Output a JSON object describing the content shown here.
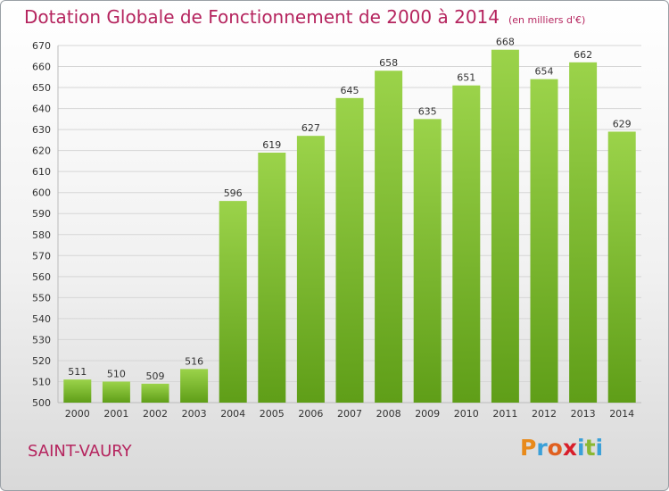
{
  "header": {
    "title": "Dotation Globale de Fonctionnement de 2000 à 2014",
    "subtitle": "(en milliers d'€)"
  },
  "commune": "SAINT-VAURY",
  "logo": {
    "text": "Proxiti",
    "letter_colors": [
      "#e88a1a",
      "#3aa0d8",
      "#e06020",
      "#d81e2a",
      "#3aa0d8",
      "#8ab832",
      "#3aa0d8"
    ]
  },
  "chart_data": {
    "type": "bar",
    "title": "Dotation Globale de Fonctionnement de 2000 à 2014",
    "subtitle": "(en milliers d'€)",
    "xlabel": "",
    "ylabel": "",
    "categories": [
      "2000",
      "2001",
      "2002",
      "2003",
      "2004",
      "2005",
      "2006",
      "2007",
      "2008",
      "2009",
      "2010",
      "2011",
      "2012",
      "2013",
      "2014"
    ],
    "values": [
      511,
      510,
      509,
      516,
      596,
      619,
      627,
      645,
      658,
      635,
      651,
      668,
      654,
      662,
      629
    ],
    "ylim": [
      500,
      670
    ],
    "yticks": [
      500,
      510,
      520,
      530,
      540,
      550,
      560,
      570,
      580,
      590,
      600,
      610,
      620,
      630,
      640,
      650,
      660,
      670
    ],
    "grid": true,
    "bar_color": "#7fbf2e",
    "data_labels": true
  }
}
